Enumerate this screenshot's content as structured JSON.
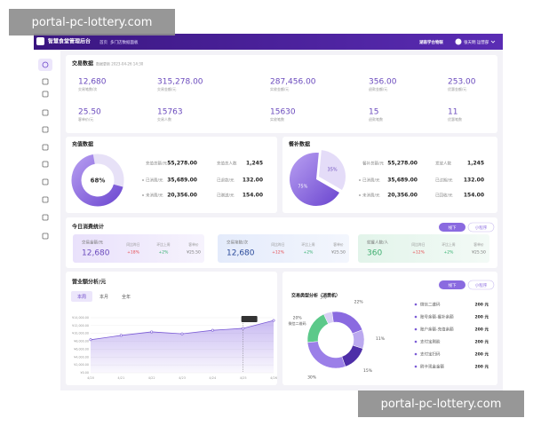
{
  "watermarks": [
    "portal-pc-lottery.com",
    "portal-pc-lottery.com"
  ],
  "header": {
    "title": "智慧食堂管理后台",
    "breadcrumb": [
      "首页",
      "多门店数据面板"
    ],
    "org": "湖南学台物联",
    "user": "张天明 运营部"
  },
  "transaction": {
    "title": "交易数据",
    "updated": "数据更新 2023-04-26 14:30",
    "stats": [
      {
        "value": "12,680",
        "label": "交易笔数/次"
      },
      {
        "value": "315,278.00",
        "label": "交易金额/元"
      },
      {
        "value": "287,456.00",
        "label": "实收金额/元"
      },
      {
        "value": "356.00",
        "label": "退款金额/元"
      },
      {
        "value": "253.00",
        "label": "优惠金额/元"
      },
      {
        "value": "25.50",
        "label": "客单价/元"
      },
      {
        "value": "15763",
        "label": "交易人数"
      },
      {
        "value": "15630",
        "label": "实收笔数"
      },
      {
        "value": "15",
        "label": "退款笔数"
      },
      {
        "value": "11",
        "label": "优惠笔数"
      }
    ]
  },
  "recharge": {
    "title": "充值数据",
    "donut": {
      "values": [
        68
      ],
      "value_labels": [
        "68%"
      ]
    },
    "rows": [
      {
        "label": "充值总额/元",
        "value": "55,278.00"
      },
      {
        "label": "已消费/元",
        "value": "35,689.00"
      },
      {
        "label": "未消费/元",
        "value": "20,356.00"
      },
      {
        "label": "充值总人数",
        "value": "1,245"
      },
      {
        "label": "已退款/元",
        "value": "132.00"
      },
      {
        "label": "已赠送/元",
        "value": "154.00"
      }
    ]
  },
  "subsidy": {
    "title": "餐补数据",
    "pie": {
      "values": [
        75,
        35
      ],
      "value_labels": [
        "75%",
        "35%"
      ]
    },
    "rows": [
      {
        "label": "餐补总额/元",
        "value": "55,278.00"
      },
      {
        "label": "已消费/元",
        "value": "35,689.00"
      },
      {
        "label": "未消费/元",
        "value": "20,356.00"
      },
      {
        "label": "发放人数",
        "value": "1,245"
      },
      {
        "label": "已过期/元",
        "value": "132.00"
      },
      {
        "label": "已回收/元",
        "value": "154.00"
      }
    ]
  },
  "today": {
    "title": "今日消费统计",
    "buttons": [
      "线下",
      "小程序"
    ],
    "boxes": [
      {
        "label": "交易金额/元",
        "value": "12,680",
        "stats": [
          {
            "label": "同比昨日",
            "value": "+18%"
          },
          {
            "label": "环比上周",
            "value": "+2%"
          },
          {
            "label": "客单价",
            "value": "¥25.50"
          }
        ]
      },
      {
        "label": "交易笔数/次",
        "value": "12,680",
        "stats": [
          {
            "label": "同比昨日",
            "value": "+12%"
          },
          {
            "label": "环比上周",
            "value": "+2%"
          },
          {
            "label": "客单价",
            "value": "¥25.50"
          }
        ]
      },
      {
        "label": "就餐人数/人",
        "value": "360",
        "stats": [
          {
            "label": "同比昨日",
            "value": "+12%"
          },
          {
            "label": "环比上周",
            "value": "+2%"
          },
          {
            "label": "客单价",
            "value": "¥25.50"
          }
        ]
      }
    ]
  },
  "revenue": {
    "title": "营业额分析/元",
    "tabs": [
      "本周",
      "本月",
      "全年"
    ],
    "chart": {
      "type": "line",
      "x": [
        "4/20",
        "4/21",
        "4/22",
        "4/23",
        "4/24",
        "4/25",
        "4/26"
      ],
      "values": [
        8400,
        9500,
        10400,
        9900,
        10800,
        11300,
        13300
      ],
      "color": "#7b5bd6",
      "ylim": [
        0,
        14000
      ],
      "yticks": [
        {
          "value": 0,
          "label": "¥0.00"
        },
        {
          "value": 2000,
          "label": "¥2,000.00"
        },
        {
          "value": 4000,
          "label": "¥4,000.00"
        },
        {
          "value": 6000,
          "label": "¥6,000.00"
        },
        {
          "value": 8000,
          "label": "¥8,000.00"
        },
        {
          "value": 10000,
          "label": "¥10,000.00"
        },
        {
          "value": 12000,
          "label": "¥12,000.00"
        },
        {
          "value": 14000,
          "label": "¥14,000.00"
        }
      ],
      "grid": true
    }
  },
  "types": {
    "title": "交易类型分析（消费机）",
    "buttons": [
      "线下",
      "小程序"
    ],
    "donut": {
      "values": [
        20,
        5,
        22,
        11,
        15,
        30
      ],
      "value_labels": [
        "20%",
        "5%",
        "22%",
        "11%",
        "15%",
        "30%"
      ],
      "colors": [
        "#5cc98a",
        "#d9cff5",
        "#8a6ae0",
        "#bba9ef",
        "#4e2ea8",
        "#9b7fe8"
      ],
      "annotation": "微信二维码"
    },
    "list": [
      {
        "name": "微信二维码",
        "amount": "200 元"
      },
      {
        "name": "账号余额-餐补余额",
        "amount": "200 元"
      },
      {
        "name": "账户余额-充值余额",
        "amount": "200 元"
      },
      {
        "name": "支付宝刷脸",
        "amount": "200 元"
      },
      {
        "name": "支付宝扫码",
        "amount": "200 元"
      },
      {
        "name": "刷卡现金金额",
        "amount": "200 元"
      }
    ]
  }
}
